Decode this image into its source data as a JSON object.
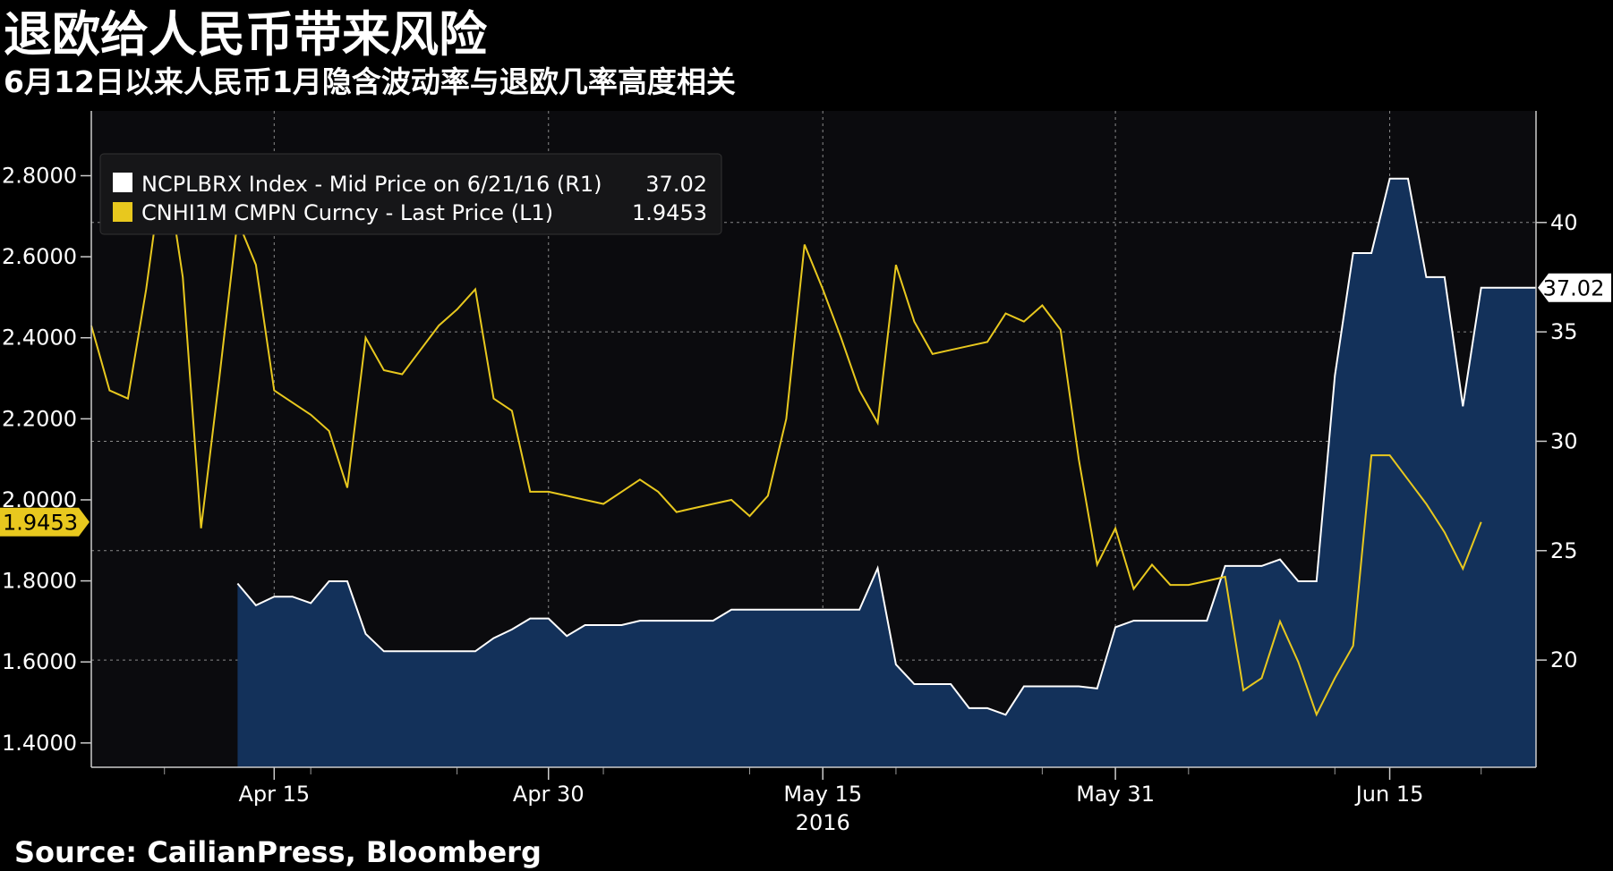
{
  "header": {
    "title": "退欧给人民币带来风险",
    "subtitle": "6月12日以来人民币1月隐含波动率与退欧几率高度相关"
  },
  "footer": {
    "source": "Source: CailianPress, Bloomberg"
  },
  "colors": {
    "background": "#000000",
    "plot_bg": "#0b0b0e",
    "white_series": "#ffffff",
    "area_fill": "#13315a",
    "yellow_series": "#e8c81e",
    "legend_bg": "#161618",
    "grid": "#8a8a8a"
  },
  "chart_data": {
    "type": "line",
    "title": "",
    "xlabel": "2016",
    "x_ticks": [
      {
        "date": "2016-04-15",
        "label": "Apr 15"
      },
      {
        "date": "2016-04-30",
        "label": "Apr 30"
      },
      {
        "date": "2016-05-15",
        "label": "May 15"
      },
      {
        "date": "2016-05-31",
        "label": "May 31"
      },
      {
        "date": "2016-06-15",
        "label": "Jun 15"
      }
    ],
    "x_range": [
      "2016-04-05",
      "2016-06-23"
    ],
    "left_axis": {
      "ylim": [
        1.34,
        2.96
      ],
      "ticks": [
        {
          "v": 1.4,
          "label": "1.4000"
        },
        {
          "v": 1.6,
          "label": "1.6000"
        },
        {
          "v": 1.8,
          "label": "1.8000"
        },
        {
          "v": 2.0,
          "label": "2.0000"
        },
        {
          "v": 2.2,
          "label": "2.2000"
        },
        {
          "v": 2.4,
          "label": "2.4000"
        },
        {
          "v": 2.6,
          "label": "2.6000"
        },
        {
          "v": 2.8,
          "label": "2.8000"
        }
      ]
    },
    "right_axis": {
      "ylim": [
        15.1,
        45.1
      ],
      "ticks": [
        {
          "v": 20,
          "label": "20"
        },
        {
          "v": 25,
          "label": "25"
        },
        {
          "v": 30,
          "label": "30"
        },
        {
          "v": 35,
          "label": "35"
        },
        {
          "v": 40,
          "label": "40"
        }
      ]
    },
    "grid": true,
    "legend_position": "top-left",
    "series": [
      {
        "name": "NCPLBRX Index - Mid Price on 6/21/16 (R1)",
        "legend_value": "37.02",
        "end_label": "37.02",
        "axis": "right",
        "style": "area",
        "points": [
          [
            "2016-04-13",
            23.5
          ],
          [
            "2016-04-14",
            22.5
          ],
          [
            "2016-04-15",
            22.9
          ],
          [
            "2016-04-16",
            22.9
          ],
          [
            "2016-04-17",
            22.6
          ],
          [
            "2016-04-18",
            23.6
          ],
          [
            "2016-04-19",
            23.6
          ],
          [
            "2016-04-20",
            21.2
          ],
          [
            "2016-04-21",
            20.4
          ],
          [
            "2016-04-22",
            20.4
          ],
          [
            "2016-04-23",
            20.4
          ],
          [
            "2016-04-24",
            20.4
          ],
          [
            "2016-04-25",
            20.4
          ],
          [
            "2016-04-26",
            20.4
          ],
          [
            "2016-04-27",
            21.0
          ],
          [
            "2016-04-28",
            21.4
          ],
          [
            "2016-04-29",
            21.9
          ],
          [
            "2016-04-30",
            21.9
          ],
          [
            "2016-05-01",
            21.1
          ],
          [
            "2016-05-02",
            21.6
          ],
          [
            "2016-05-03",
            21.6
          ],
          [
            "2016-05-04",
            21.6
          ],
          [
            "2016-05-05",
            21.8
          ],
          [
            "2016-05-06",
            21.8
          ],
          [
            "2016-05-07",
            21.8
          ],
          [
            "2016-05-08",
            21.8
          ],
          [
            "2016-05-09",
            21.8
          ],
          [
            "2016-05-10",
            22.3
          ],
          [
            "2016-05-11",
            22.3
          ],
          [
            "2016-05-12",
            22.3
          ],
          [
            "2016-05-13",
            22.3
          ],
          [
            "2016-05-14",
            22.3
          ],
          [
            "2016-05-15",
            22.3
          ],
          [
            "2016-05-16",
            22.3
          ],
          [
            "2016-05-17",
            22.3
          ],
          [
            "2016-05-18",
            24.2
          ],
          [
            "2016-05-19",
            19.8
          ],
          [
            "2016-05-20",
            18.9
          ],
          [
            "2016-05-21",
            18.9
          ],
          [
            "2016-05-22",
            18.9
          ],
          [
            "2016-05-23",
            17.8
          ],
          [
            "2016-05-24",
            17.8
          ],
          [
            "2016-05-25",
            17.5
          ],
          [
            "2016-05-26",
            18.8
          ],
          [
            "2016-05-27",
            18.8
          ],
          [
            "2016-05-28",
            18.8
          ],
          [
            "2016-05-29",
            18.8
          ],
          [
            "2016-05-30",
            18.7
          ],
          [
            "2016-05-31",
            21.5
          ],
          [
            "2016-06-01",
            21.8
          ],
          [
            "2016-06-02",
            21.8
          ],
          [
            "2016-06-03",
            21.8
          ],
          [
            "2016-06-04",
            21.8
          ],
          [
            "2016-06-05",
            21.8
          ],
          [
            "2016-06-06",
            24.3
          ],
          [
            "2016-06-07",
            24.3
          ],
          [
            "2016-06-08",
            24.3
          ],
          [
            "2016-06-09",
            24.6
          ],
          [
            "2016-06-10",
            23.6
          ],
          [
            "2016-06-11",
            23.6
          ],
          [
            "2016-06-12",
            33.0
          ],
          [
            "2016-06-13",
            38.6
          ],
          [
            "2016-06-14",
            38.6
          ],
          [
            "2016-06-15",
            42.0
          ],
          [
            "2016-06-16",
            42.0
          ],
          [
            "2016-06-17",
            37.5
          ],
          [
            "2016-06-18",
            37.5
          ],
          [
            "2016-06-19",
            31.6
          ],
          [
            "2016-06-20",
            37.02
          ],
          [
            "2016-06-23",
            37.02
          ]
        ]
      },
      {
        "name": "CNHI1M CMPN Curncy - Last Price (L1)",
        "legend_value": "1.9453",
        "end_label": "1.9453",
        "axis": "left",
        "style": "line",
        "points": [
          [
            "2016-04-05",
            2.43
          ],
          [
            "2016-04-06",
            2.27
          ],
          [
            "2016-04-07",
            2.25
          ],
          [
            "2016-04-08",
            2.52
          ],
          [
            "2016-04-09",
            2.85
          ],
          [
            "2016-04-10",
            2.55
          ],
          [
            "2016-04-11",
            1.93
          ],
          [
            "2016-04-12",
            2.3
          ],
          [
            "2016-04-13",
            2.69
          ],
          [
            "2016-04-14",
            2.58
          ],
          [
            "2016-04-15",
            2.27
          ],
          [
            "2016-04-16",
            2.24
          ],
          [
            "2016-04-17",
            2.21
          ],
          [
            "2016-04-18",
            2.17
          ],
          [
            "2016-04-19",
            2.03
          ],
          [
            "2016-04-20",
            2.4
          ],
          [
            "2016-04-21",
            2.32
          ],
          [
            "2016-04-22",
            2.31
          ],
          [
            "2016-04-23",
            2.37
          ],
          [
            "2016-04-24",
            2.43
          ],
          [
            "2016-04-25",
            2.47
          ],
          [
            "2016-04-26",
            2.52
          ],
          [
            "2016-04-27",
            2.25
          ],
          [
            "2016-04-28",
            2.22
          ],
          [
            "2016-04-29",
            2.02
          ],
          [
            "2016-04-30",
            2.02
          ],
          [
            "2016-05-01",
            2.01
          ],
          [
            "2016-05-02",
            2.0
          ],
          [
            "2016-05-03",
            1.99
          ],
          [
            "2016-05-04",
            2.02
          ],
          [
            "2016-05-05",
            2.05
          ],
          [
            "2016-05-06",
            2.02
          ],
          [
            "2016-05-07",
            1.97
          ],
          [
            "2016-05-08",
            1.98
          ],
          [
            "2016-05-09",
            1.99
          ],
          [
            "2016-05-10",
            2.0
          ],
          [
            "2016-05-11",
            1.96
          ],
          [
            "2016-05-12",
            2.01
          ],
          [
            "2016-05-13",
            2.2
          ],
          [
            "2016-05-14",
            2.63
          ],
          [
            "2016-05-15",
            2.52
          ],
          [
            "2016-05-16",
            2.4
          ],
          [
            "2016-05-17",
            2.27
          ],
          [
            "2016-05-18",
            2.19
          ],
          [
            "2016-05-19",
            2.58
          ],
          [
            "2016-05-20",
            2.44
          ],
          [
            "2016-05-21",
            2.36
          ],
          [
            "2016-05-22",
            2.37
          ],
          [
            "2016-05-23",
            2.38
          ],
          [
            "2016-05-24",
            2.39
          ],
          [
            "2016-05-25",
            2.46
          ],
          [
            "2016-05-26",
            2.44
          ],
          [
            "2016-05-27",
            2.48
          ],
          [
            "2016-05-28",
            2.42
          ],
          [
            "2016-05-29",
            2.1
          ],
          [
            "2016-05-30",
            1.84
          ],
          [
            "2016-05-31",
            1.93
          ],
          [
            "2016-06-01",
            1.78
          ],
          [
            "2016-06-02",
            1.84
          ],
          [
            "2016-06-03",
            1.79
          ],
          [
            "2016-06-04",
            1.79
          ],
          [
            "2016-06-05",
            1.8
          ],
          [
            "2016-06-06",
            1.81
          ],
          [
            "2016-06-07",
            1.53
          ],
          [
            "2016-06-08",
            1.56
          ],
          [
            "2016-06-09",
            1.7
          ],
          [
            "2016-06-10",
            1.6
          ],
          [
            "2016-06-11",
            1.47
          ],
          [
            "2016-06-12",
            1.56
          ],
          [
            "2016-06-13",
            1.64
          ],
          [
            "2016-06-14",
            2.11
          ],
          [
            "2016-06-15",
            2.11
          ],
          [
            "2016-06-16",
            2.05
          ],
          [
            "2016-06-17",
            1.99
          ],
          [
            "2016-06-18",
            1.92
          ],
          [
            "2016-06-19",
            1.83
          ],
          [
            "2016-06-20",
            1.9453
          ]
        ]
      }
    ]
  }
}
